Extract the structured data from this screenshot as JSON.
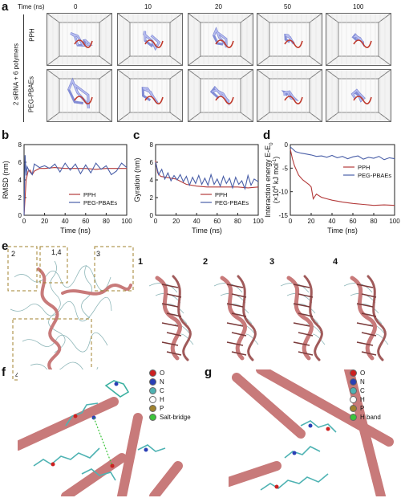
{
  "panel_a": {
    "label": "a",
    "time_header": "Time (ns)",
    "times": [
      "0",
      "10",
      "20",
      "50",
      "100"
    ],
    "row_group": "2 siRNA + 6 polymers",
    "rows": [
      "PPH",
      "PEG-PBAEs"
    ]
  },
  "panel_b": {
    "label": "b"
  },
  "panel_c": {
    "label": "c"
  },
  "panel_d": {
    "label": "d"
  },
  "panel_e": {
    "label": "e",
    "insets": [
      "2",
      "1,4",
      "3",
      "4"
    ],
    "details": [
      "1",
      "2",
      "3",
      "4"
    ]
  },
  "panel_f": {
    "label": "f",
    "legend": [
      "O",
      "N",
      "C",
      "H",
      "P",
      "Salt-bridge"
    ]
  },
  "panel_g": {
    "label": "g",
    "legend": [
      "O",
      "N",
      "C",
      "H",
      "P",
      "H band"
    ]
  },
  "colors": {
    "red": "#b33a3a",
    "blue": "#4a5fa8",
    "dashed": "#a0822d",
    "ribbon": "#c87a7a"
  },
  "chart_data": [
    {
      "type": "line",
      "title": "",
      "xlabel": "Time (ns)",
      "ylabel": "RMSD (nm)",
      "xlim": [
        0,
        100
      ],
      "ylim": [
        0,
        8
      ],
      "xticks": [
        "0",
        "20",
        "40",
        "60",
        "80",
        "100"
      ],
      "yticks": [
        "0",
        "2",
        "4",
        "6",
        "8"
      ],
      "legend": "bottom-right",
      "series": [
        {
          "name": "PPH",
          "color": "#b33a3a",
          "x": [
            0,
            2,
            4,
            6,
            8,
            10,
            15,
            20,
            30,
            40,
            50,
            60,
            70,
            80,
            90,
            100
          ],
          "y": [
            0,
            4.0,
            5.0,
            5.1,
            4.6,
            5.0,
            5.3,
            5.3,
            5.4,
            5.3,
            5.3,
            5.3,
            5.2,
            5.3,
            5.3,
            5.3
          ]
        },
        {
          "name": "PEG-PBAEs",
          "color": "#4a5fa8",
          "x": [
            0,
            1,
            2,
            3,
            5,
            8,
            10,
            15,
            20,
            25,
            30,
            35,
            40,
            45,
            50,
            55,
            60,
            65,
            70,
            75,
            80,
            85,
            90,
            95,
            100
          ],
          "y": [
            0,
            6.8,
            4.5,
            5.5,
            5.0,
            4.6,
            5.8,
            5.4,
            5.6,
            5.3,
            5.8,
            4.9,
            5.9,
            5.1,
            5.8,
            4.7,
            5.7,
            4.8,
            5.9,
            5.2,
            5.6,
            4.6,
            5.0,
            5.9,
            5.4
          ]
        }
      ]
    },
    {
      "type": "line",
      "title": "",
      "xlabel": "Time (ns)",
      "ylabel": "Gyration (nm)",
      "xlim": [
        0,
        100
      ],
      "ylim": [
        0,
        8
      ],
      "xticks": [
        "0",
        "20",
        "40",
        "60",
        "80",
        "100"
      ],
      "yticks": [
        "0",
        "2",
        "4",
        "6",
        "8"
      ],
      "legend": "bottom-right",
      "series": [
        {
          "name": "PPH",
          "color": "#b33a3a",
          "x": [
            0,
            2,
            5,
            10,
            15,
            20,
            25,
            30,
            40,
            50,
            60,
            70,
            80,
            90,
            100
          ],
          "y": [
            6.2,
            4.8,
            4.4,
            4.3,
            4.2,
            4.1,
            3.8,
            3.5,
            3.3,
            3.2,
            3.2,
            3.2,
            3.2,
            3.1,
            3.2
          ]
        },
        {
          "name": "PEG-PBAEs",
          "color": "#4a5fa8",
          "x": [
            0,
            3,
            6,
            9,
            12,
            15,
            18,
            21,
            24,
            27,
            30,
            33,
            36,
            39,
            42,
            45,
            48,
            51,
            54,
            57,
            60,
            63,
            66,
            69,
            72,
            75,
            78,
            81,
            84,
            87,
            90,
            93,
            96,
            100
          ],
          "y": [
            6.0,
            4.6,
            5.2,
            4.1,
            4.8,
            3.9,
            4.5,
            4.0,
            4.6,
            3.8,
            4.4,
            3.4,
            4.3,
            3.6,
            4.5,
            3.5,
            4.2,
            3.4,
            4.6,
            3.5,
            4.1,
            3.3,
            4.4,
            3.6,
            4.2,
            3.1,
            4.3,
            3.5,
            3.9,
            3.0,
            4.5,
            3.4,
            4.1,
            3.8
          ]
        }
      ]
    },
    {
      "type": "line",
      "title": "",
      "xlabel": "Time (ns)",
      "ylabel": "Interaction energy E-E",
      "ylabel_sub": "0",
      "ylabel2": "(×10",
      "ylabel2_sup": "4",
      "ylabel2_tail": " kJ mol",
      "ylabel2_sup2": "-1",
      "ylabel2_end": ")",
      "xlim": [
        0,
        100
      ],
      "ylim": [
        -15,
        0
      ],
      "xticks": [
        "0",
        "20",
        "40",
        "60",
        "80",
        "100"
      ],
      "yticks": [
        "0",
        "-5",
        "-10",
        "-15"
      ],
      "legend": "right",
      "series": [
        {
          "name": "PPH",
          "color": "#b33a3a",
          "x": [
            0,
            2,
            4,
            6,
            8,
            10,
            12,
            15,
            18,
            20,
            22,
            25,
            30,
            35,
            40,
            50,
            60,
            70,
            80,
            90,
            100
          ],
          "y": [
            -1,
            -3,
            -4.5,
            -5.5,
            -6.5,
            -7.0,
            -7.5,
            -8.0,
            -8.5,
            -9.0,
            -11.5,
            -10.5,
            -11.2,
            -11.5,
            -11.8,
            -12.2,
            -12.5,
            -12.7,
            -12.9,
            -12.8,
            -12.9
          ]
        },
        {
          "name": "PEG-PBAEs",
          "color": "#4a5fa8",
          "x": [
            0,
            5,
            10,
            15,
            20,
            25,
            30,
            35,
            40,
            45,
            50,
            55,
            60,
            65,
            70,
            75,
            80,
            85,
            90,
            95,
            100
          ],
          "y": [
            -0.5,
            -1.5,
            -1.8,
            -2.0,
            -2.2,
            -2.5,
            -2.4,
            -2.7,
            -2.3,
            -2.8,
            -2.5,
            -3.0,
            -2.6,
            -2.4,
            -3.1,
            -2.7,
            -2.9,
            -2.5,
            -3.2,
            -2.8,
            -3.0
          ]
        }
      ]
    }
  ]
}
